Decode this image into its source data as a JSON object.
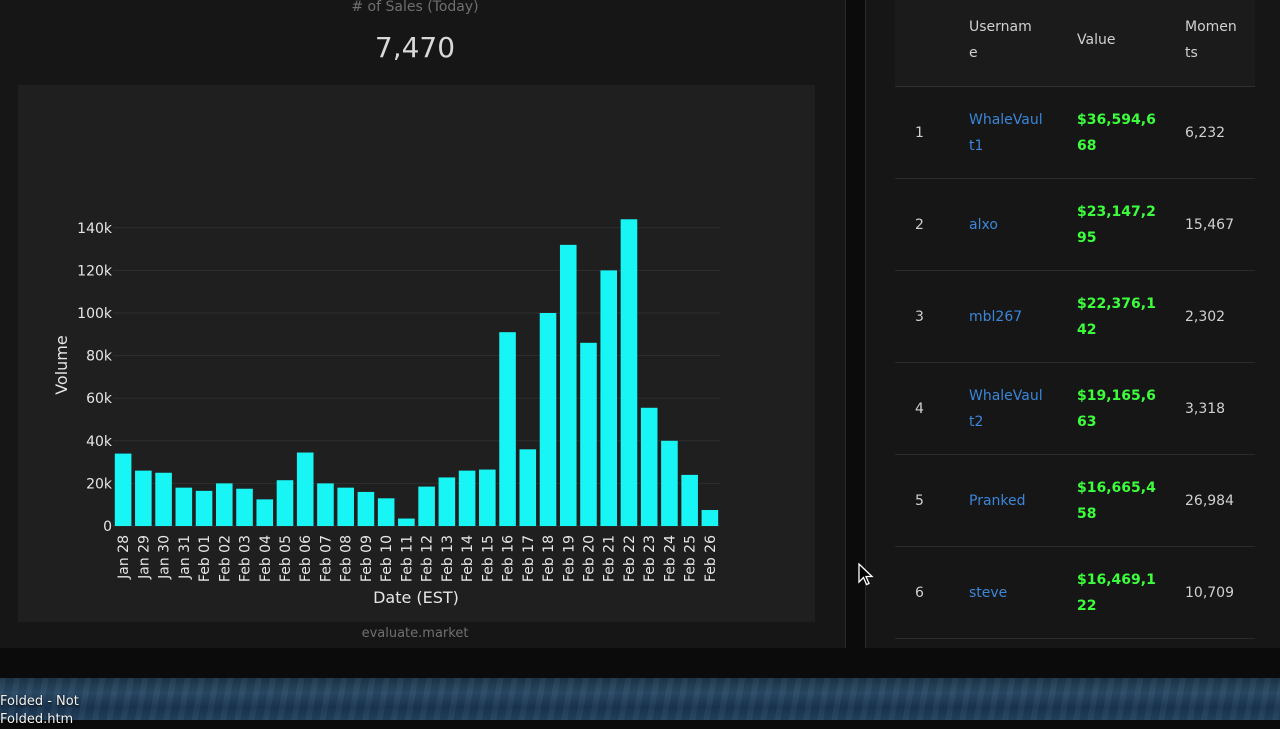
{
  "kpi": {
    "label": "# of Sales (Today)",
    "value": "7,470"
  },
  "watermark": "evaluate.market",
  "chart_data": {
    "type": "bar",
    "xlabel": "Date (EST)",
    "ylabel": "Volume",
    "ylim": [
      0,
      150000
    ],
    "yticks": [
      "0",
      "20k",
      "40k",
      "60k",
      "80k",
      "100k",
      "120k",
      "140k"
    ],
    "ytick_values": [
      0,
      20000,
      40000,
      60000,
      80000,
      100000,
      120000,
      140000
    ],
    "grid": true,
    "bar_color": "#18f5f5",
    "categories": [
      "Jan 28",
      "Jan 29",
      "Jan 30",
      "Jan 31",
      "Feb 01",
      "Feb 02",
      "Feb 03",
      "Feb 04",
      "Feb 05",
      "Feb 06",
      "Feb 07",
      "Feb 08",
      "Feb 09",
      "Feb 10",
      "Feb 11",
      "Feb 12",
      "Feb 13",
      "Feb 14",
      "Feb 15",
      "Feb 16",
      "Feb 17",
      "Feb 18",
      "Feb 19",
      "Feb 20",
      "Feb 21",
      "Feb 22",
      "Feb 23",
      "Feb 24",
      "Feb 25",
      "Feb 26"
    ],
    "values": [
      34000,
      26000,
      25000,
      18000,
      16500,
      20000,
      17500,
      12500,
      21500,
      34500,
      20000,
      18000,
      16000,
      13000,
      3500,
      18500,
      22800,
      26000,
      26500,
      91000,
      36000,
      100000,
      132000,
      86000,
      120000,
      144000,
      55500,
      40000,
      24000,
      7500
    ]
  },
  "leaderboard": {
    "headers": {
      "username": "Username",
      "value": "Value",
      "moments": "Moments"
    },
    "rows": [
      {
        "rank": "1",
        "username": "WhaleVault1",
        "value": "$36,594,668",
        "moments": "6,232"
      },
      {
        "rank": "2",
        "username": "alxo",
        "value": "$23,147,295",
        "moments": "15,467"
      },
      {
        "rank": "3",
        "username": "mbl267",
        "value": "$22,376,142",
        "moments": "2,302"
      },
      {
        "rank": "4",
        "username": "WhaleVault2",
        "value": "$19,165,663",
        "moments": "3,318"
      },
      {
        "rank": "5",
        "username": "Pranked",
        "value": "$16,665,458",
        "moments": "26,984"
      },
      {
        "rank": "6",
        "username": "steve",
        "value": "$16,469,122",
        "moments": "10,709"
      }
    ]
  },
  "desktop": {
    "item_label_1": "Folded - Not",
    "item_label_2": "Folded.htm"
  },
  "colors": {
    "link": "#3a86d8",
    "money": "#3cff3c",
    "bars": "#18f5f5"
  }
}
